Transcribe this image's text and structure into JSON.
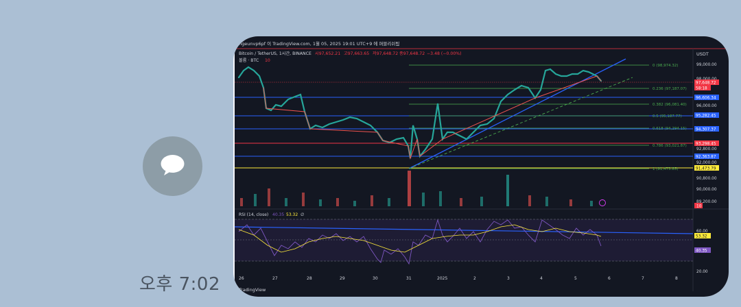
{
  "chat": {
    "time": "오후 7:02",
    "avatar_icon": "chat-bubble-icon"
  },
  "screenshot": {
    "watermark": "ngeunvp6pf 이 TradingView.com, 1월 05, 2025 19:01 UTC+9 에 퍼블리쉬됨",
    "symbol_line": "Bitcoin / TetherUS, 1시간, BINANCE",
    "ohlc": {
      "open": "시97,652.21",
      "high": "고97,663.65",
      "low": "저97,648.72",
      "close": "종97,648.72",
      "change": "−3.48 (−0.00%)"
    },
    "volume_label": "볼륨 · BTC",
    "volume_value": "10",
    "currency": "USDT",
    "fib_levels": [
      {
        "label": "0 (98,974.32)",
        "color": "#4caf50"
      },
      {
        "label": "0.236 (97,187.07)",
        "color": "#4caf50"
      },
      {
        "label": "0.382 (96,081.40)",
        "color": "#4caf50"
      },
      {
        "label": "0.5 (95,187.77)",
        "color": "#4caf50"
      },
      {
        "label": "0.618 (94,294.15)",
        "color": "#4caf50"
      },
      {
        "label": "0.786 (93,021.87)",
        "color": "#4caf50"
      },
      {
        "label": "1 (91,473.85)",
        "color": "#4caf50"
      }
    ],
    "price_axis": [
      "99,000.00",
      "98,000.00",
      "96,000.00",
      "92,800.00",
      "92,000.00",
      "90,800.00",
      "90,000.00",
      "89,200.00"
    ],
    "price_tags": [
      {
        "label": "97,648.72",
        "color": "#f23645"
      },
      {
        "label": "58:18",
        "color": "#f23645"
      },
      {
        "label": "96,606.34",
        "color": "#2962ff"
      },
      {
        "label": "95,282.45",
        "color": "#2962ff"
      },
      {
        "label": "94,307.37",
        "color": "#2962ff"
      },
      {
        "label": "93,298.45",
        "color": "#f23645"
      },
      {
        "label": "92,363.87",
        "color": "#2962ff"
      },
      {
        "label": "91,473.79",
        "color": "#ffeb3b"
      },
      {
        "label": "10",
        "color": "#f23645"
      }
    ],
    "rsi": {
      "label": "RSI (14, close)",
      "value1": "40.35",
      "value2": "53.32",
      "extra": "∅",
      "axis_top": "60.00",
      "axis_bottom": "20.00"
    },
    "x_axis": [
      "26",
      "27",
      "28",
      "29",
      "30",
      "31",
      "2025",
      "2",
      "3",
      "4",
      "5",
      "6",
      "7",
      "8"
    ],
    "footer": "TradingView"
  }
}
